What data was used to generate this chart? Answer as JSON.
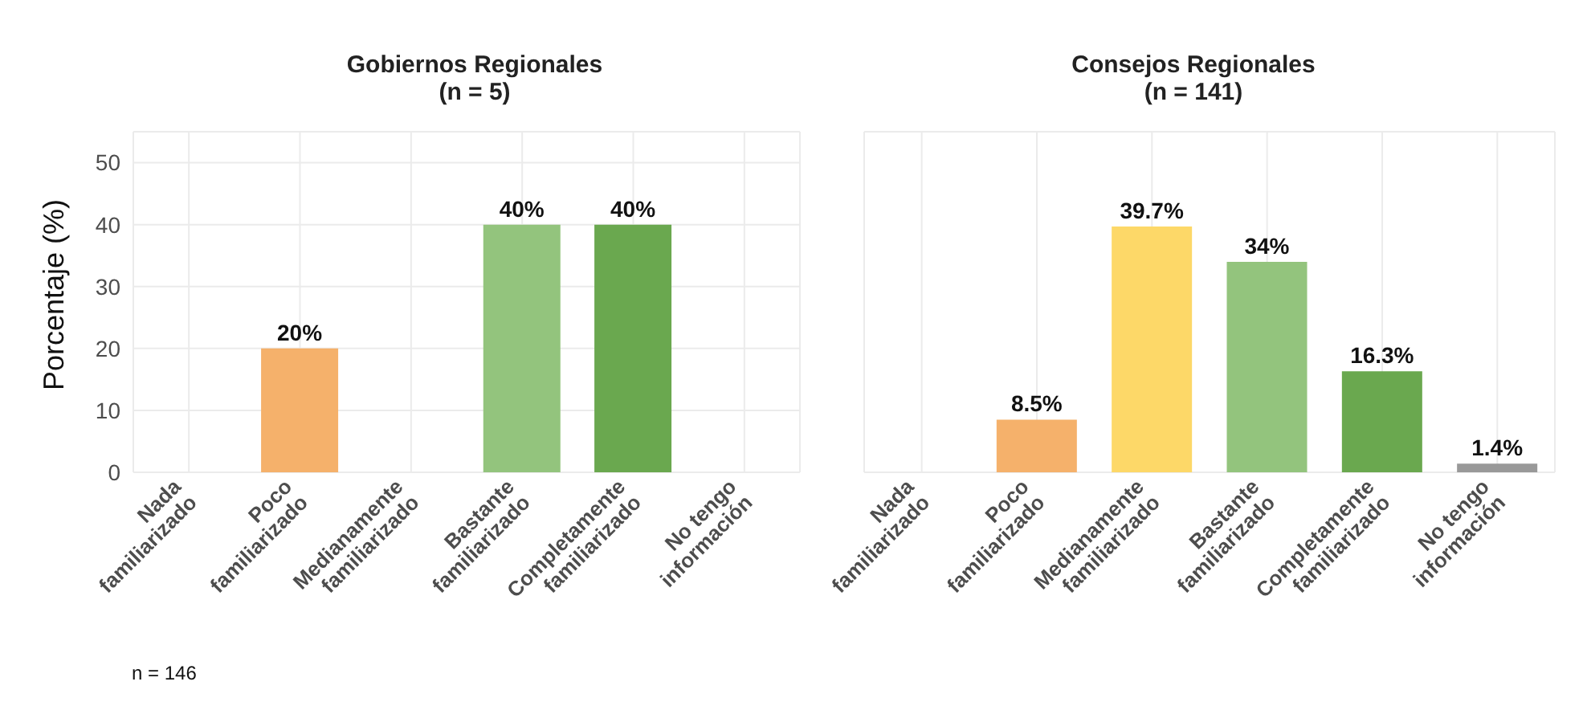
{
  "chart_data": [
    {
      "type": "bar",
      "title": "Gobiernos Regionales\n(n = 5)",
      "ylabel": "Porcentaje (%)",
      "categories": [
        "Nada\nfamiliarizado",
        "Poco\nfamiliarizado",
        "Medianamente\nfamiliarizado",
        "Bastante\nfamiliarizado",
        "Completamente\nfamiliarizado",
        "No tengo\ninformación"
      ],
      "values": [
        null,
        20,
        null,
        40,
        40,
        null
      ],
      "value_labels": [
        null,
        "20%",
        null,
        "40%",
        "40%",
        null
      ],
      "colors": [
        "#f5b16b",
        "#f5b16b",
        "#fdd868",
        "#93c47d",
        "#6aa84f",
        "#999999"
      ],
      "ylim": [
        0,
        55
      ],
      "yticks": [
        0,
        10,
        20,
        30,
        40,
        50
      ],
      "grid": true,
      "annotations": [
        "n = 146"
      ]
    },
    {
      "type": "bar",
      "title": "Consejos Regionales\n(n = 141)",
      "categories": [
        "Nada\nfamiliarizado",
        "Poco\nfamiliarizado",
        "Medianamente\nfamiliarizado",
        "Bastante\nfamiliarizado",
        "Completamente\nfamiliarizado",
        "No tengo\ninformación"
      ],
      "values": [
        null,
        8.5,
        39.7,
        34,
        16.3,
        1.4
      ],
      "value_labels": [
        null,
        "8.5%",
        "39.7%",
        "34%",
        "16.3%",
        "1.4%"
      ],
      "colors": [
        "#f5b16b",
        "#f5b16b",
        "#fdd868",
        "#93c47d",
        "#6aa84f",
        "#999999"
      ],
      "ylim": [
        0,
        55
      ],
      "yticks": [
        0,
        10,
        20,
        30,
        40,
        50
      ],
      "grid": true,
      "tick_labels": "x"
    }
  ]
}
